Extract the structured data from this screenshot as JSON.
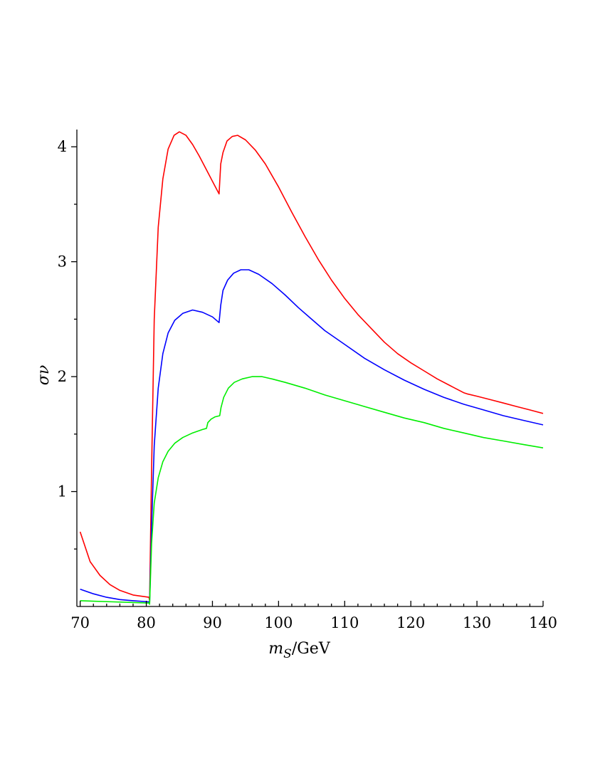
{
  "chart_data": {
    "type": "line",
    "title": "",
    "xlabel": {
      "var": "m",
      "sub": "S",
      "unit": "/GeV"
    },
    "ylabel": "σν",
    "xlim": [
      69.5,
      140
    ],
    "ylim": [
      0,
      4.15
    ],
    "x_ticks": [
      70,
      80,
      90,
      100,
      110,
      120,
      130,
      140
    ],
    "y_ticks": [
      1,
      2,
      3,
      4
    ],
    "x_minor_step": 2,
    "y_minor_step": 0.5,
    "grid": false,
    "legend": "none",
    "series": [
      {
        "color": "#ff0000",
        "points": [
          [
            70,
            0.65
          ],
          [
            71.5,
            0.39
          ],
          [
            73,
            0.27
          ],
          [
            74.5,
            0.19
          ],
          [
            76,
            0.14
          ],
          [
            78,
            0.1
          ],
          [
            80.4,
            0.08
          ],
          [
            80.5,
            0.05
          ],
          [
            80.8,
            1.2
          ],
          [
            81.2,
            2.5
          ],
          [
            81.8,
            3.3
          ],
          [
            82.5,
            3.72
          ],
          [
            83.3,
            3.98
          ],
          [
            84.2,
            4.1
          ],
          [
            85,
            4.13
          ],
          [
            86,
            4.1
          ],
          [
            87,
            4.02
          ],
          [
            88,
            3.92
          ],
          [
            89,
            3.81
          ],
          [
            90,
            3.7
          ],
          [
            91,
            3.59
          ],
          [
            91.25,
            3.85
          ],
          [
            91.6,
            3.95
          ],
          [
            92.2,
            4.05
          ],
          [
            93,
            4.09
          ],
          [
            93.8,
            4.1
          ],
          [
            95,
            4.06
          ],
          [
            96.5,
            3.97
          ],
          [
            98,
            3.85
          ],
          [
            100,
            3.65
          ],
          [
            102,
            3.43
          ],
          [
            104,
            3.22
          ],
          [
            106,
            3.02
          ],
          [
            108,
            2.84
          ],
          [
            110,
            2.68
          ],
          [
            112,
            2.54
          ],
          [
            114,
            2.42
          ],
          [
            116,
            2.3
          ],
          [
            118,
            2.2
          ],
          [
            120,
            2.12
          ],
          [
            122,
            2.05
          ],
          [
            124,
            1.98
          ],
          [
            126,
            1.92
          ],
          [
            128,
            1.86
          ],
          [
            128.5,
            1.85
          ],
          [
            130,
            1.83
          ],
          [
            132,
            1.8
          ],
          [
            134,
            1.77
          ],
          [
            136,
            1.74
          ],
          [
            138,
            1.71
          ],
          [
            140,
            1.68
          ]
        ]
      },
      {
        "color": "#0000ff",
        "points": [
          [
            70,
            0.15
          ],
          [
            72,
            0.11
          ],
          [
            74,
            0.08
          ],
          [
            76,
            0.06
          ],
          [
            78,
            0.05
          ],
          [
            80.4,
            0.04
          ],
          [
            80.5,
            0.03
          ],
          [
            80.8,
            0.7
          ],
          [
            81.2,
            1.4
          ],
          [
            81.8,
            1.9
          ],
          [
            82.5,
            2.2
          ],
          [
            83.3,
            2.38
          ],
          [
            84.3,
            2.49
          ],
          [
            85.5,
            2.55
          ],
          [
            87,
            2.58
          ],
          [
            88.5,
            2.56
          ],
          [
            90,
            2.52
          ],
          [
            91,
            2.47
          ],
          [
            91.25,
            2.62
          ],
          [
            91.6,
            2.75
          ],
          [
            92.3,
            2.84
          ],
          [
            93.2,
            2.9
          ],
          [
            94.3,
            2.93
          ],
          [
            95.5,
            2.93
          ],
          [
            97,
            2.89
          ],
          [
            99,
            2.81
          ],
          [
            101,
            2.71
          ],
          [
            103,
            2.6
          ],
          [
            105,
            2.5
          ],
          [
            107,
            2.4
          ],
          [
            110,
            2.28
          ],
          [
            113,
            2.16
          ],
          [
            116,
            2.06
          ],
          [
            119,
            1.97
          ],
          [
            122,
            1.89
          ],
          [
            125,
            1.82
          ],
          [
            128,
            1.76
          ],
          [
            131,
            1.71
          ],
          [
            134,
            1.66
          ],
          [
            137,
            1.62
          ],
          [
            140,
            1.58
          ]
        ]
      },
      {
        "color": "#00ee00",
        "points": [
          [
            70,
            0.05
          ],
          [
            75,
            0.04
          ],
          [
            80.4,
            0.03
          ],
          [
            80.5,
            0.02
          ],
          [
            80.8,
            0.55
          ],
          [
            81.2,
            0.9
          ],
          [
            81.8,
            1.12
          ],
          [
            82.5,
            1.26
          ],
          [
            83.3,
            1.35
          ],
          [
            84.3,
            1.42
          ],
          [
            85.5,
            1.47
          ],
          [
            87,
            1.51
          ],
          [
            88.5,
            1.54
          ],
          [
            89.1,
            1.55
          ],
          [
            89.3,
            1.6
          ],
          [
            89.8,
            1.63
          ],
          [
            90.4,
            1.65
          ],
          [
            91.1,
            1.66
          ],
          [
            91.3,
            1.73
          ],
          [
            91.7,
            1.82
          ],
          [
            92.4,
            1.9
          ],
          [
            93.3,
            1.95
          ],
          [
            94.5,
            1.98
          ],
          [
            96,
            2.0
          ],
          [
            97.5,
            2.0
          ],
          [
            99,
            1.98
          ],
          [
            101,
            1.95
          ],
          [
            104,
            1.9
          ],
          [
            107,
            1.84
          ],
          [
            110,
            1.79
          ],
          [
            113,
            1.74
          ],
          [
            116,
            1.69
          ],
          [
            119,
            1.64
          ],
          [
            122,
            1.6
          ],
          [
            125,
            1.55
          ],
          [
            128,
            1.51
          ],
          [
            131,
            1.47
          ],
          [
            134,
            1.44
          ],
          [
            137,
            1.41
          ],
          [
            140,
            1.38
          ]
        ]
      }
    ]
  }
}
